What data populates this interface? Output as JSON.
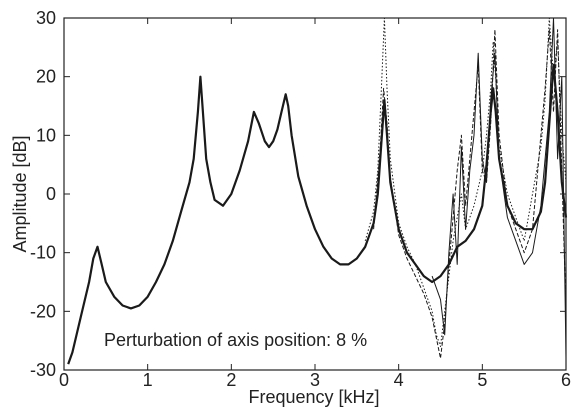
{
  "chart_data": {
    "type": "line",
    "xlabel": "Frequency [kHz]",
    "ylabel": "Amplitude [dB]",
    "xlim": [
      0,
      6
    ],
    "ylim": [
      -30,
      30
    ],
    "xticks": [
      0,
      1,
      2,
      3,
      4,
      5,
      6
    ],
    "yticks": [
      -30,
      -20,
      -10,
      0,
      10,
      20,
      30
    ],
    "grid": false,
    "annotation": "Perturbation of axis position: 8 %",
    "line_color": "#1a1a1a",
    "series": [
      {
        "style": "solid",
        "x": [
          0.05,
          0.1,
          0.2,
          0.3,
          0.35,
          0.4,
          0.45,
          0.5,
          0.6,
          0.7,
          0.8,
          0.9,
          1.0,
          1.1,
          1.2,
          1.3,
          1.4,
          1.5,
          1.55,
          1.6,
          1.63,
          1.66,
          1.7,
          1.75,
          1.8,
          1.9,
          2.0,
          2.1,
          2.2,
          2.27,
          2.33,
          2.4,
          2.45,
          2.5,
          2.55,
          2.6,
          2.65,
          2.68,
          2.72,
          2.8,
          2.9,
          3.0,
          3.1,
          3.2,
          3.3,
          3.4,
          3.5,
          3.6,
          3.7,
          3.75,
          3.8,
          3.83,
          3.86,
          3.9,
          4.0,
          4.1,
          4.2,
          4.3,
          4.4,
          4.5,
          4.6,
          4.7,
          4.8,
          4.9,
          5.0,
          5.05,
          5.1,
          5.13,
          5.16,
          5.2,
          5.3,
          5.4,
          5.5,
          5.6,
          5.7,
          5.75,
          5.8,
          5.85,
          5.9,
          5.95,
          6.0
        ],
        "y": [
          -29,
          -27,
          -21,
          -15,
          -11,
          -9,
          -12,
          -15,
          -17.5,
          -19,
          -19.5,
          -19,
          -17.5,
          -15,
          -12,
          -8,
          -3,
          2,
          6,
          14,
          20,
          14,
          6,
          2,
          -1,
          -2,
          0,
          4,
          9,
          14,
          12,
          9,
          8,
          9,
          11,
          14,
          17,
          15,
          10,
          3,
          -2,
          -6,
          -9,
          -11,
          -12,
          -12,
          -11,
          -9,
          -5,
          0,
          10,
          16,
          10,
          2,
          -6,
          -10,
          -12,
          -14,
          -15,
          -14,
          -12,
          -9,
          -8,
          -6,
          -2,
          5,
          14,
          18,
          14,
          6,
          -2,
          -5,
          -6,
          -6,
          -3,
          2,
          12,
          22,
          14,
          2,
          -4
        ]
      },
      {
        "style": "dotted",
        "x": [
          3.6,
          3.7,
          3.75,
          3.8,
          3.83,
          3.86,
          3.9,
          4.0,
          4.1,
          4.2,
          4.3,
          4.4,
          4.45,
          4.5,
          4.55,
          4.6,
          4.65,
          4.7,
          4.75,
          4.8,
          4.9,
          5.0,
          5.05,
          5.1,
          5.13,
          5.16,
          5.2,
          5.3,
          5.4,
          5.5,
          5.6,
          5.7,
          5.75,
          5.8,
          5.85,
          5.9,
          5.95,
          6.0
        ],
        "y": [
          -8,
          -3,
          4,
          20,
          30,
          18,
          6,
          -5,
          -9,
          -12,
          -16,
          -20,
          -24,
          -26,
          -20,
          -14,
          -8,
          -4,
          0,
          -6,
          -2,
          4,
          10,
          18,
          26,
          20,
          8,
          0,
          -4,
          -8,
          0,
          8,
          16,
          30,
          20,
          26,
          10,
          2
        ]
      },
      {
        "style": "dashed",
        "x": [
          3.7,
          3.78,
          3.82,
          3.86,
          3.9,
          4.0,
          4.1,
          4.2,
          4.3,
          4.4,
          4.5,
          4.55,
          4.6,
          4.65,
          4.7,
          4.75,
          4.8,
          4.85,
          4.9,
          4.95,
          5.0,
          5.05,
          5.1,
          5.15,
          5.2,
          5.3,
          5.4,
          5.5,
          5.6,
          5.65,
          5.7,
          5.75,
          5.8,
          5.85,
          5.9,
          6.0
        ],
        "y": [
          -6,
          8,
          18,
          12,
          3,
          -7,
          -11,
          -14,
          -17,
          -21,
          -28,
          -22,
          -12,
          -4,
          4,
          10,
          -2,
          6,
          14,
          22,
          4,
          2,
          12,
          28,
          10,
          -2,
          -6,
          -10,
          -6,
          2,
          10,
          18,
          28,
          14,
          28,
          -20
        ]
      },
      {
        "style": "solid",
        "x": [
          4.4,
          4.5,
          4.55,
          4.6,
          4.65,
          4.7,
          4.75,
          4.8,
          4.85,
          4.9,
          4.95,
          5.0,
          5.05,
          5.1,
          5.15,
          5.2,
          5.3,
          5.4,
          5.5,
          5.6,
          5.7,
          5.8,
          5.85,
          5.9,
          5.95,
          6.0
        ],
        "y": [
          -14,
          -18,
          -24,
          -10,
          0,
          -12,
          8,
          -6,
          4,
          10,
          24,
          6,
          2,
          16,
          24,
          6,
          -4,
          -8,
          -12,
          -10,
          -2,
          14,
          30,
          6,
          20,
          -28
        ]
      }
    ]
  }
}
